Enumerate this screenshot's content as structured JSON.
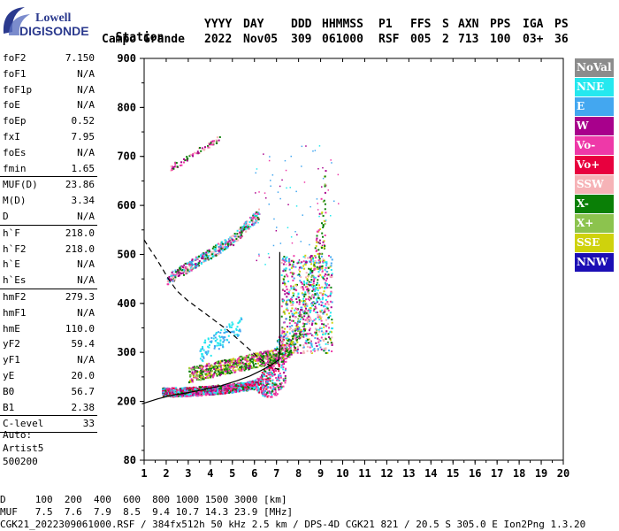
{
  "logo": {
    "line1": "Lowell",
    "line2": "DIGISONDE"
  },
  "header": {
    "labels": [
      "Station",
      "YYYY",
      "DAY",
      "DDD",
      "HHMMSS",
      "P1",
      "FFS",
      "S",
      "AXN",
      "PPS",
      "IGA",
      "PS"
    ],
    "values": [
      "Campo Grande",
      "2022",
      "Nov05",
      "309",
      "061000",
      "RSF",
      "005",
      "2",
      "713",
      "100",
      "03+",
      "36"
    ]
  },
  "params": [
    {
      "k": "foF2",
      "v": "7.150"
    },
    {
      "k": "foF1",
      "v": "N/A"
    },
    {
      "k": "foF1p",
      "v": "N/A"
    },
    {
      "k": "foE",
      "v": "N/A"
    },
    {
      "k": "foEp",
      "v": "0.52"
    },
    {
      "k": "fxI",
      "v": "7.95"
    },
    {
      "k": "foEs",
      "v": "N/A"
    },
    {
      "k": "fmin",
      "v": "1.65"
    },
    {
      "sep": true
    },
    {
      "k": "MUF(D)",
      "v": "23.86"
    },
    {
      "k": "M(D)",
      "v": "3.34"
    },
    {
      "k": "D",
      "v": "N/A"
    },
    {
      "sep": true
    },
    {
      "k": "h`F",
      "v": "218.0"
    },
    {
      "k": "h`F2",
      "v": "218.0"
    },
    {
      "k": "h`E",
      "v": "N/A"
    },
    {
      "k": "h`Es",
      "v": "N/A"
    },
    {
      "sep": true
    },
    {
      "k": "hmF2",
      "v": "279.3"
    },
    {
      "k": "hmF1",
      "v": "N/A"
    },
    {
      "k": "hmE",
      "v": "110.0"
    },
    {
      "k": "yF2",
      "v": "59.4"
    },
    {
      "k": "yF1",
      "v": "N/A"
    },
    {
      "k": "yE",
      "v": "20.0"
    },
    {
      "k": "B0",
      "v": "56.7"
    },
    {
      "k": "B1",
      "v": "2.38"
    },
    {
      "sep": true
    },
    {
      "k": "C-level",
      "v": "33"
    },
    {
      "sep": true
    }
  ],
  "auto": [
    "Auto:",
    "Artist5",
    "500200"
  ],
  "legend": [
    {
      "label": "NoVal",
      "color": "#8c8c8c"
    },
    {
      "label": "NNE",
      "color": "#25e8ef"
    },
    {
      "label": "E",
      "color": "#43a7f0"
    },
    {
      "label": "W",
      "color": "#a8008c"
    },
    {
      "label": "Vo-",
      "color": "#ee39a8"
    },
    {
      "label": "Vo+",
      "color": "#e8003e"
    },
    {
      "label": "SSW",
      "color": "#f6b3b7"
    },
    {
      "label": "X-",
      "color": "#0a7f06"
    },
    {
      "label": "X+",
      "color": "#8cc34e"
    },
    {
      "label": "SSE",
      "color": "#cfd20c"
    },
    {
      "label": "NNW",
      "color": "#1b0eb5"
    }
  ],
  "footer": {
    "line1": "D     100  200  400  600  800 1000 1500 3000 [km]",
    "line2": "MUF   7.5  7.6  7.9  8.5  9.4 10.7 14.3 23.9 [MHz]",
    "line3": "CGK21_2022309061000.RSF / 384fx512h 50 kHz 2.5 km / DPS-4D CGK21 821 / 20.5 S 305.0 E Ion2Png 1.3.20"
  },
  "chart_data": {
    "type": "scatter",
    "xlim": [
      1,
      20
    ],
    "ylim": [
      80,
      900
    ],
    "x_ticks": [
      1,
      2,
      3,
      4,
      5,
      6,
      7,
      8,
      9,
      10,
      11,
      12,
      13,
      14,
      15,
      16,
      17,
      18,
      19,
      20
    ],
    "y_ticks": [
      80,
      200,
      300,
      400,
      500,
      600,
      700,
      800,
      900
    ],
    "grid": false,
    "profile_solid": {
      "x": [
        0.9,
        1.6,
        2.2,
        3.0,
        3.8,
        4.5,
        5.2,
        5.8,
        6.3,
        6.8,
        7.1,
        7.15,
        7.15,
        7.15
      ],
      "y": [
        195,
        205,
        212,
        218,
        225,
        232,
        242,
        252,
        263,
        275,
        285,
        300,
        400,
        505
      ]
    },
    "profile_dashed": {
      "x": [
        1.0,
        1.2,
        1.5,
        1.8,
        2.1,
        2.5,
        3.0,
        3.6,
        4.2,
        4.8,
        5.3,
        5.8,
        6.3,
        6.8,
        7.1
      ],
      "y": [
        530,
        515,
        495,
        473,
        450,
        425,
        405,
        385,
        365,
        345,
        325,
        305,
        285,
        270,
        265
      ]
    }
  }
}
